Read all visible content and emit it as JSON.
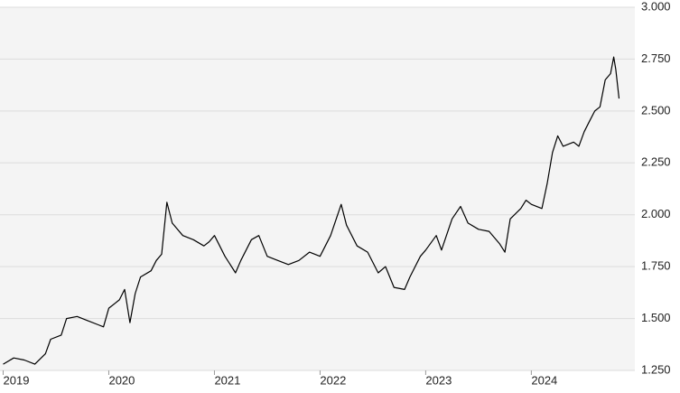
{
  "chart_data": {
    "type": "line",
    "x": [
      2019.0,
      2019.1,
      2019.2,
      2019.3,
      2019.4,
      2019.45,
      2019.55,
      2019.6,
      2019.7,
      2019.8,
      2019.9,
      2019.95,
      2020.0,
      2020.1,
      2020.15,
      2020.2,
      2020.25,
      2020.3,
      2020.4,
      2020.45,
      2020.5,
      2020.55,
      2020.6,
      2020.7,
      2020.8,
      2020.9,
      2020.95,
      2021.0,
      2021.1,
      2021.2,
      2021.25,
      2021.35,
      2021.42,
      2021.5,
      2021.6,
      2021.7,
      2021.8,
      2021.9,
      2022.0,
      2022.1,
      2022.2,
      2022.25,
      2022.35,
      2022.45,
      2022.55,
      2022.62,
      2022.7,
      2022.8,
      2022.85,
      2022.95,
      2023.0,
      2023.1,
      2023.15,
      2023.25,
      2023.33,
      2023.4,
      2023.5,
      2023.6,
      2023.7,
      2023.75,
      2023.8,
      2023.9,
      2023.95,
      2024.0,
      2024.1,
      2024.15,
      2024.2,
      2024.25,
      2024.3,
      2024.4,
      2024.45,
      2024.5,
      2024.55,
      2024.6,
      2024.65,
      2024.7,
      2024.75,
      2024.78,
      2024.8,
      2024.83
    ],
    "series": [
      {
        "color": "#000000",
        "values": [
          1280,
          1310,
          1300,
          1280,
          1330,
          1400,
          1420,
          1500,
          1510,
          1490,
          1470,
          1460,
          1550,
          1590,
          1640,
          1480,
          1620,
          1700,
          1730,
          1780,
          1810,
          2060,
          1960,
          1900,
          1880,
          1850,
          1870,
          1900,
          1800,
          1720,
          1780,
          1880,
          1900,
          1800,
          1780,
          1760,
          1780,
          1820,
          1800,
          1900,
          2050,
          1950,
          1850,
          1820,
          1720,
          1750,
          1650,
          1640,
          1700,
          1800,
          1830,
          1900,
          1830,
          1980,
          2040,
          1960,
          1930,
          1920,
          1860,
          1820,
          1980,
          2030,
          2070,
          2050,
          2030,
          2150,
          2300,
          2380,
          2330,
          2350,
          2330,
          2400,
          2450,
          2500,
          2520,
          2650,
          2680,
          2760,
          2700,
          2560
        ]
      }
    ],
    "xlim": [
      2018.97,
      2024.98
    ],
    "xticks": [
      2019,
      2020,
      2021,
      2022,
      2023,
      2024
    ],
    "ylim": [
      1250,
      3000
    ],
    "yticks": [
      {
        "value": 1250,
        "label": "1.250"
      },
      {
        "value": 1500,
        "label": "1.500"
      },
      {
        "value": 1750,
        "label": "1.750"
      },
      {
        "value": 2000,
        "label": "2.000"
      },
      {
        "value": 2250,
        "label": "2.250"
      },
      {
        "value": 2500,
        "label": "2.500"
      },
      {
        "value": 2750,
        "label": "2.750"
      },
      {
        "value": 3000,
        "label": "3.000"
      }
    ],
    "grid": true
  }
}
